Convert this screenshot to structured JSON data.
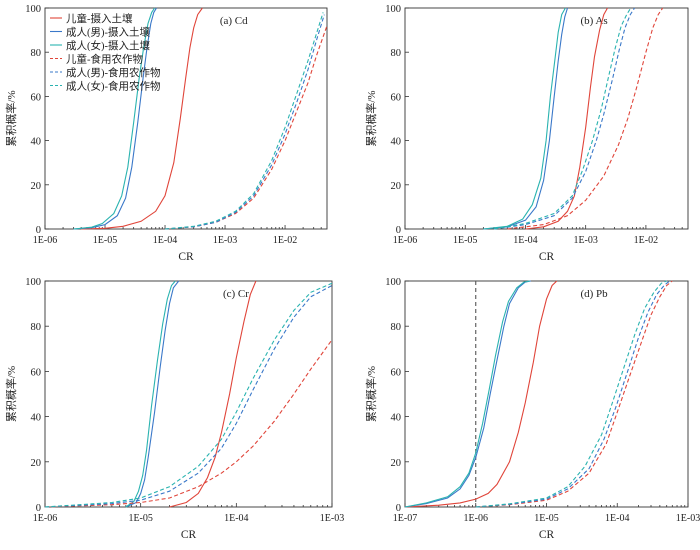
{
  "colors": {
    "child": "#e0453a",
    "adult_male": "#3a78c9",
    "adult_female": "#2ab3b0",
    "axis": "#333333",
    "marker": "#555555"
  },
  "chart_data": [
    {
      "type": "line",
      "panel": "(a) Cd",
      "xlabel": "CR",
      "ylabel": "累积概率/%",
      "xscale": "log",
      "xlim": [
        1e-06,
        0.05
      ],
      "ylim": [
        0,
        100
      ],
      "xticks": [
        1e-06,
        1e-05,
        0.0001,
        0.001,
        0.01
      ],
      "xtick_labels": [
        "1E-06",
        "1E-05",
        "1E-04",
        "1E-03",
        "1E-02"
      ],
      "yticks": [
        0,
        20,
        40,
        60,
        80,
        100
      ],
      "ytick_labels": [
        "0",
        "20",
        "40",
        "60",
        "80",
        "100"
      ],
      "legend": {
        "placement": "top-left",
        "show": true
      },
      "series": [
        {
          "name": "儿童-摄入土壤",
          "group": "child",
          "dash": "solid",
          "x": [
            4e-06,
            1e-05,
            2e-05,
            4e-05,
            7e-05,
            0.0001,
            0.00014,
            0.00018,
            0.00022,
            0.00026,
            0.0003,
            0.00035,
            0.00042
          ],
          "y": [
            0,
            0.3,
            1.2,
            3.5,
            8,
            15,
            30,
            50,
            68,
            82,
            91,
            97,
            100
          ]
        },
        {
          "name": "成人(男)-摄入土壤",
          "group": "adult_male",
          "dash": "solid",
          "x": [
            3e-06,
            6e-06,
            1e-05,
            1.6e-05,
            2.2e-05,
            2.8e-05,
            3.5e-05,
            4.3e-05,
            5e-05,
            5.8e-05,
            6.5e-05,
            7.2e-05
          ],
          "y": [
            0,
            0.6,
            2,
            6,
            14,
            28,
            48,
            68,
            82,
            93,
            98,
            100
          ]
        },
        {
          "name": "成人(女)-摄入土壤",
          "group": "adult_female",
          "dash": "solid",
          "x": [
            3e-06,
            6e-06,
            9e-06,
            1.4e-05,
            1.9e-05,
            2.4e-05,
            3e-05,
            3.7e-05,
            4.4e-05,
            5.2e-05,
            6e-05,
            6.7e-05
          ],
          "y": [
            0,
            0.8,
            2.5,
            7,
            15,
            28,
            48,
            68,
            82,
            93,
            98,
            100
          ]
        },
        {
          "name": "儿童-食用农作物",
          "group": "child",
          "dash": "dashed",
          "x": [
            0.0001,
            0.0003,
            0.0007,
            0.0015,
            0.003,
            0.006,
            0.01,
            0.016,
            0.024,
            0.034,
            0.05
          ],
          "y": [
            0,
            1,
            3,
            7,
            14,
            27,
            40,
            54,
            66,
            79,
            92
          ]
        },
        {
          "name": "成人(男)-食用农作物",
          "group": "adult_male",
          "dash": "dashed",
          "x": [
            0.0001,
            0.0003,
            0.0007,
            0.0015,
            0.003,
            0.006,
            0.01,
            0.016,
            0.024,
            0.034,
            0.045
          ],
          "y": [
            0,
            1,
            3,
            7.5,
            15,
            29,
            43,
            58,
            72,
            86,
            97
          ]
        },
        {
          "name": "成人(女)-食用农作物",
          "group": "adult_female",
          "dash": "dashed",
          "x": [
            0.0001,
            0.0003,
            0.0007,
            0.0015,
            0.003,
            0.006,
            0.01,
            0.016,
            0.024,
            0.034,
            0.043
          ],
          "y": [
            0,
            1.2,
            3.5,
            8,
            16,
            31,
            46,
            62,
            76,
            89,
            98
          ]
        }
      ]
    },
    {
      "type": "line",
      "panel": "(b) As",
      "xlabel": "CR",
      "ylabel": "累积概率/%",
      "xscale": "log",
      "xlim": [
        1e-06,
        0.05
      ],
      "ylim": [
        0,
        100
      ],
      "xticks": [
        1e-06,
        1e-05,
        0.0001,
        0.001,
        0.01
      ],
      "xtick_labels": [
        "1E-06",
        "1E-05",
        "1E-04",
        "1E-03",
        "1E-02"
      ],
      "yticks": [
        0,
        20,
        40,
        60,
        80,
        100
      ],
      "ytick_labels": [
        "0",
        "20",
        "40",
        "60",
        "80",
        "100"
      ],
      "legend": {
        "show": false
      },
      "series": [
        {
          "name": "儿童-摄入土壤",
          "group": "child",
          "dash": "solid",
          "x": [
            0.0001,
            0.0002,
            0.00035,
            0.0005,
            0.00065,
            0.0008,
            0.001,
            0.0012,
            0.0014,
            0.0017,
            0.002,
            0.0023
          ],
          "y": [
            0,
            1,
            3.5,
            8,
            15,
            28,
            46,
            64,
            78,
            90,
            97,
            100
          ]
        },
        {
          "name": "成人(男)-摄入土壤",
          "group": "adult_male",
          "dash": "solid",
          "x": [
            2e-05,
            5e-05,
            0.0001,
            0.00015,
            0.0002,
            0.00025,
            0.0003,
            0.00035,
            0.0004,
            0.00045,
            0.0005
          ],
          "y": [
            0,
            1,
            4,
            10,
            22,
            40,
            60,
            76,
            88,
            96,
            100
          ]
        },
        {
          "name": "成人(女)-摄入土壤",
          "group": "adult_female",
          "dash": "solid",
          "x": [
            2e-05,
            5e-05,
            9e-05,
            0.00013,
            0.00018,
            0.00022,
            0.00026,
            0.00031,
            0.00035,
            0.0004,
            0.00046
          ],
          "y": [
            0,
            1.2,
            4.5,
            11,
            23,
            40,
            60,
            77,
            89,
            97,
            100
          ]
        },
        {
          "name": "儿童-食用农作物",
          "group": "child",
          "dash": "dashed",
          "x": [
            5e-05,
            0.0002,
            0.0005,
            0.001,
            0.002,
            0.0035,
            0.005,
            0.007,
            0.01,
            0.013,
            0.016,
            0.019
          ],
          "y": [
            0,
            2,
            6,
            13,
            24,
            38,
            50,
            64,
            80,
            91,
            97,
            100
          ]
        },
        {
          "name": "成人(男)-食用农作物",
          "group": "adult_male",
          "dash": "dashed",
          "x": [
            3e-05,
            0.0001,
            0.0003,
            0.0006,
            0.001,
            0.0015,
            0.002,
            0.0028,
            0.0036,
            0.0045,
            0.0055,
            0.0065
          ],
          "y": [
            0,
            2,
            6,
            14,
            26,
            40,
            52,
            68,
            81,
            91,
            97,
            100
          ]
        },
        {
          "name": "成人(女)-食用农作物",
          "group": "adult_female",
          "dash": "dashed",
          "x": [
            3e-05,
            0.0001,
            0.0003,
            0.0006,
            0.0009,
            0.0013,
            0.0018,
            0.0024,
            0.0031,
            0.0039,
            0.0048,
            0.0056
          ],
          "y": [
            0,
            2.5,
            7,
            15,
            27,
            40,
            54,
            69,
            82,
            92,
            97,
            100
          ]
        }
      ]
    },
    {
      "type": "line",
      "panel": "(c) Cr",
      "xlabel": "CR",
      "ylabel": "累积概率/%",
      "xscale": "log",
      "xlim": [
        1e-06,
        0.001
      ],
      "ylim": [
        0,
        100
      ],
      "xticks": [
        1e-06,
        1e-05,
        0.0001,
        0.001
      ],
      "xtick_labels": [
        "1E-06",
        "1E-05",
        "1E-04",
        "1E-03"
      ],
      "yticks": [
        0,
        20,
        40,
        60,
        80,
        100
      ],
      "ytick_labels": [
        "0",
        "20",
        "40",
        "60",
        "80",
        "100"
      ],
      "legend": {
        "show": false
      },
      "series": [
        {
          "name": "儿童-摄入土壤",
          "group": "child",
          "dash": "solid",
          "x": [
            2e-05,
            3e-05,
            4e-05,
            5e-05,
            6e-05,
            7e-05,
            8.5e-05,
            0.0001,
            0.00012,
            0.00014,
            0.00016
          ],
          "y": [
            0,
            2,
            6,
            13,
            22,
            33,
            50,
            66,
            82,
            94,
            100
          ]
        },
        {
          "name": "成人(男)-摄入土壤",
          "group": "adult_male",
          "dash": "solid",
          "x": [
            7e-06,
            9e-06,
            1e-05,
            1.1e-05,
            1.2e-05,
            1.4e-05,
            1.6e-05,
            1.8e-05,
            2e-05,
            2.2e-05,
            2.5e-05
          ],
          "y": [
            0,
            2,
            6,
            12,
            22,
            42,
            62,
            78,
            90,
            97,
            100
          ]
        },
        {
          "name": "成人(女)-摄入土壤",
          "group": "adult_female",
          "dash": "solid",
          "x": [
            7e-06,
            8.5e-06,
            9.5e-06,
            1.05e-05,
            1.15e-05,
            1.3e-05,
            1.5e-05,
            1.7e-05,
            1.9e-05,
            2.1e-05,
            2.3e-05
          ],
          "y": [
            0,
            2.5,
            7,
            14,
            25,
            45,
            65,
            81,
            92,
            98,
            100
          ]
        },
        {
          "name": "儿童-食用农作物",
          "group": "child",
          "dash": "dashed",
          "x": [
            1e-06,
            5e-06,
            1e-05,
            2e-05,
            4e-05,
            7e-05,
            0.0001,
            0.00015,
            0.00025,
            0.0004,
            0.0006,
            0.001
          ],
          "y": [
            0,
            1,
            2,
            4,
            9,
            15,
            20,
            27,
            38,
            50,
            61,
            74
          ]
        },
        {
          "name": "成人(男)-食用农作物",
          "group": "adult_male",
          "dash": "dashed",
          "x": [
            1e-06,
            5e-06,
            1e-05,
            2e-05,
            4e-05,
            7e-05,
            0.0001,
            0.00015,
            0.00025,
            0.0004,
            0.0006,
            0.001
          ],
          "y": [
            0,
            1.5,
            3,
            7,
            15,
            26,
            37,
            52,
            70,
            84,
            93,
            98
          ]
        },
        {
          "name": "成人(女)-食用农作物",
          "group": "adult_female",
          "dash": "dashed",
          "x": [
            1e-06,
            5e-06,
            1e-05,
            2e-05,
            4e-05,
            7e-05,
            0.0001,
            0.00015,
            0.00025,
            0.0004,
            0.0006,
            0.001
          ],
          "y": [
            0,
            2,
            4,
            9,
            18,
            30,
            42,
            57,
            74,
            87,
            95,
            99
          ]
        }
      ]
    },
    {
      "type": "line",
      "panel": "(d) Pb",
      "xlabel": "CR",
      "ylabel": "累积概率/%",
      "xscale": "log",
      "xlim": [
        1e-07,
        0.001
      ],
      "ylim": [
        0,
        100
      ],
      "xticks": [
        1e-07,
        1e-06,
        1e-05,
        0.0001,
        0.001
      ],
      "xtick_labels": [
        "1E-07",
        "1E-06",
        "1E-05",
        "1E-04",
        "1E-03"
      ],
      "yticks": [
        0,
        20,
        40,
        60,
        80,
        100
      ],
      "ytick_labels": [
        "0",
        "20",
        "40",
        "60",
        "80",
        "100"
      ],
      "vline_x": 1e-06,
      "legend": {
        "show": false
      },
      "series": [
        {
          "name": "儿童-摄入土壤",
          "group": "child",
          "dash": "solid",
          "x": [
            1e-07,
            3e-07,
            6e-07,
            1e-06,
            1.5e-06,
            2e-06,
            3e-06,
            4e-06,
            5e-06,
            6.5e-06,
            8e-06,
            1e-05,
            1.2e-05,
            1.4e-05
          ],
          "y": [
            0,
            0.8,
            1.8,
            3.5,
            6,
            10,
            20,
            33,
            46,
            64,
            80,
            92,
            98,
            100
          ]
        },
        {
          "name": "成人(男)-摄入土壤",
          "group": "adult_male",
          "dash": "solid",
          "x": [
            1e-07,
            2e-07,
            4e-07,
            6e-07,
            8e-07,
            1e-06,
            1.3e-06,
            1.6e-06,
            2e-06,
            2.5e-06,
            3e-06,
            4e-06,
            5e-06,
            6e-06
          ],
          "y": [
            0,
            1.5,
            4,
            8,
            14,
            22,
            35,
            50,
            65,
            80,
            90,
            97,
            99.5,
            100
          ]
        },
        {
          "name": "成人(女)-摄入土壤",
          "group": "adult_female",
          "dash": "solid",
          "x": [
            1e-07,
            2e-07,
            4e-07,
            6e-07,
            8e-07,
            1e-06,
            1.25e-06,
            1.55e-06,
            1.9e-06,
            2.4e-06,
            2.9e-06,
            3.8e-06,
            4.8e-06,
            5.8e-06
          ],
          "y": [
            0,
            1.8,
            4.5,
            9,
            15,
            24,
            37,
            52,
            67,
            82,
            91,
            97,
            99.5,
            100
          ]
        },
        {
          "name": "儿童-食用农作物",
          "group": "child",
          "dash": "dashed",
          "x": [
            1e-06,
            3e-06,
            1e-05,
            2e-05,
            4e-05,
            7e-05,
            0.0001,
            0.00015,
            0.00022,
            0.0003,
            0.0004,
            0.0005,
            0.0006
          ],
          "y": [
            0,
            1,
            3,
            7,
            15,
            28,
            42,
            58,
            73,
            85,
            93,
            98,
            100
          ]
        },
        {
          "name": "成人(男)-食用农作物",
          "group": "adult_male",
          "dash": "dashed",
          "x": [
            1e-06,
            3e-06,
            1e-05,
            2e-05,
            4e-05,
            6.5e-05,
            9.5e-05,
            0.00014,
            0.0002,
            0.00027,
            0.00036,
            0.00046,
            0.00055
          ],
          "y": [
            0,
            1.2,
            3.5,
            8,
            17,
            30,
            44,
            60,
            75,
            86,
            94,
            98,
            100
          ]
        },
        {
          "name": "成人(女)-食用农作物",
          "group": "adult_female",
          "dash": "dashed",
          "x": [
            1e-06,
            3e-06,
            1e-05,
            2e-05,
            3.5e-05,
            6e-05,
            8.5e-05,
            0.000125,
            0.00018,
            0.000245,
            0.00033,
            0.00042,
            0.0005
          ],
          "y": [
            0,
            1.4,
            4,
            9,
            18,
            32,
            46,
            62,
            77,
            88,
            95,
            99,
            100
          ]
        }
      ]
    }
  ]
}
